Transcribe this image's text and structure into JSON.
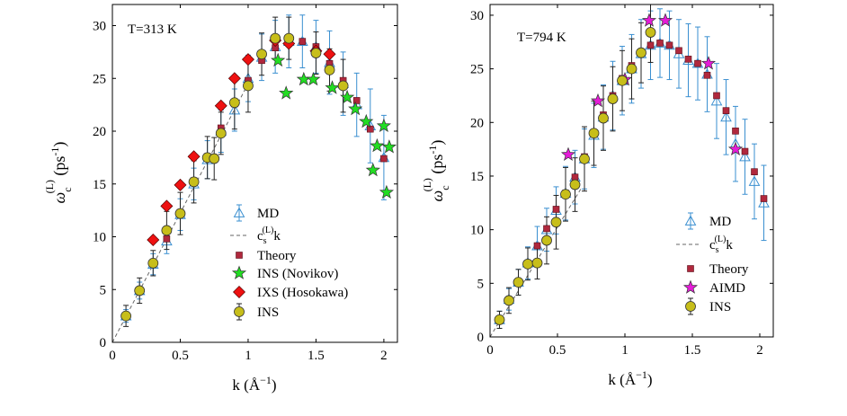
{
  "colors": {
    "md": "#3a8fd0",
    "theory": "#b0283d",
    "ins_novikov": "#22dd22",
    "ixs_hosokawa": "#ee1111",
    "ins": "#c7be1a",
    "aimd": "#e51cd8",
    "linear": "#666666"
  },
  "chart_data": [
    {
      "type": "scatter",
      "annotation": "T=313 K",
      "xlabel_main": "k (Å",
      "xlabel_exp": "−1",
      "xlabel_close": ")",
      "ylabel_main": "ω",
      "ylabel_sup": "(L)",
      "ylabel_sub": "c",
      "ylabel_unit": " (ps",
      "ylabel_unit_exp": "-1",
      "ylabel_unit_close": ")",
      "xlim": [
        0,
        2.1
      ],
      "ylim": [
        0,
        32
      ],
      "xticks": [
        0,
        0.5,
        1,
        1.5,
        2
      ],
      "xtick_labels": [
        "0",
        "0.5",
        "1",
        "1.5",
        "2"
      ],
      "yticks": [
        0,
        5,
        10,
        15,
        20,
        25,
        30
      ],
      "ytick_labels": [
        "0",
        "5",
        "10",
        "15",
        "20",
        "25",
        "30"
      ],
      "legend_position": "bottom-right",
      "linear_slope": 24.5,
      "linear_xmax": 1.0,
      "legend": {
        "md": "MD",
        "linear_pre": "c",
        "linear_sub": "s",
        "linear_sup": "(L)",
        "linear_post": "k",
        "theory": "Theory",
        "series4": "INS (Novikov)",
        "series5": "IXS (Hosokawa)",
        "ins": "INS"
      },
      "series": {
        "md": {
          "x": [
            0.1,
            0.2,
            0.3,
            0.4,
            0.5,
            0.6,
            0.7,
            0.8,
            0.9,
            1.0,
            1.1,
            1.2,
            1.3,
            1.4,
            1.5,
            1.6,
            1.7,
            1.8,
            1.9,
            2.0
          ],
          "y": [
            2.5,
            4.9,
            7.4,
            9.6,
            12.1,
            15.0,
            17.3,
            20.0,
            22.0,
            25.0,
            27.0,
            28.0,
            28.5,
            28.5,
            28.0,
            26.5,
            24.5,
            22.5,
            20.5,
            17.5
          ],
          "err": [
            0.6,
            0.8,
            1.0,
            1.2,
            1.5,
            1.5,
            1.8,
            2.0,
            2.0,
            2.2,
            2.2,
            2.5,
            2.5,
            2.5,
            2.5,
            3.0,
            3.0,
            3.0,
            3.5,
            4.0
          ]
        },
        "theory": {
          "x": [
            0.1,
            0.2,
            0.3,
            0.4,
            0.5,
            0.6,
            0.7,
            0.8,
            0.9,
            1.0,
            1.1,
            1.2,
            1.3,
            1.4,
            1.5,
            1.6,
            1.7,
            1.8,
            1.9,
            2.0
          ],
          "y": [
            2.5,
            4.9,
            7.4,
            9.8,
            12.3,
            15.3,
            17.6,
            20.3,
            22.6,
            24.8,
            26.7,
            27.9,
            28.5,
            28.5,
            28.0,
            26.4,
            24.8,
            22.9,
            20.2,
            17.4
          ]
        },
        "ins": {
          "x": [
            0.1,
            0.2,
            0.3,
            0.4,
            0.5,
            0.6,
            0.7,
            0.75,
            0.8,
            0.9,
            1.0,
            1.1,
            1.2,
            1.3,
            1.5,
            1.6,
            1.7
          ],
          "y": [
            2.5,
            4.9,
            7.5,
            10.6,
            12.2,
            15.2,
            17.5,
            17.4,
            19.8,
            22.7,
            24.3,
            27.3,
            28.8,
            28.8,
            27.4,
            25.8,
            24.3
          ],
          "err": [
            1.0,
            1.2,
            1.2,
            1.8,
            2.0,
            2.0,
            2.0,
            2.0,
            2.0,
            2.5,
            2.5,
            2.0,
            2.0,
            2.0,
            2.0,
            2.0,
            2.5
          ]
        },
        "series4": {
          "x": [
            1.22,
            1.28,
            1.41,
            1.48,
            1.62,
            1.73,
            1.79,
            1.87,
            1.92,
            1.95,
            2.0,
            2.02,
            2.04
          ],
          "y": [
            26.7,
            23.6,
            24.9,
            24.9,
            24.1,
            23.2,
            22.1,
            20.9,
            16.3,
            18.6,
            20.5,
            14.2,
            18.5
          ]
        },
        "series5": {
          "x": [
            0.3,
            0.4,
            0.5,
            0.6,
            0.8,
            0.9,
            1.0,
            1.2,
            1.3,
            1.5,
            1.6
          ],
          "y": [
            9.7,
            12.9,
            14.9,
            17.6,
            22.4,
            25.0,
            26.8,
            28.6,
            28.3,
            27.6,
            27.3
          ]
        }
      }
    },
    {
      "type": "scatter",
      "annotation": "T=794 K",
      "xlabel_main": "k (Å",
      "xlabel_exp": "−1",
      "xlabel_close": ")",
      "ylabel_main": "ω",
      "ylabel_sup": "(L)",
      "ylabel_sub": "c",
      "ylabel_unit": " (ps",
      "ylabel_unit_exp": "-1",
      "ylabel_unit_close": ")",
      "xlim": [
        0,
        2.1
      ],
      "ylim": [
        0,
        31
      ],
      "xticks": [
        0,
        0.5,
        1,
        1.5,
        2
      ],
      "xtick_labels": [
        "0",
        "0.5",
        "1",
        "1.5",
        "2"
      ],
      "yticks": [
        0,
        5,
        10,
        15,
        20,
        25,
        30
      ],
      "ytick_labels": [
        "0",
        "5",
        "10",
        "15",
        "20",
        "25",
        "30"
      ],
      "legend_position": "bottom-right",
      "linear_slope": 20.5,
      "linear_xmax": 0.68,
      "legend": {
        "md": "MD",
        "linear_pre": "c",
        "linear_sub": "s",
        "linear_sup": "(L)",
        "linear_post": "k",
        "theory": "Theory",
        "series4": "AIMD",
        "ins": "INS"
      },
      "series": {
        "md": {
          "x": [
            0.07,
            0.14,
            0.21,
            0.28,
            0.35,
            0.42,
            0.49,
            0.56,
            0.63,
            0.7,
            0.77,
            0.84,
            0.91,
            0.98,
            1.05,
            1.12,
            1.19,
            1.26,
            1.33,
            1.4,
            1.47,
            1.54,
            1.61,
            1.68,
            1.75,
            1.82,
            1.89,
            1.96,
            2.03
          ],
          "y": [
            1.6,
            3.5,
            5.1,
            6.9,
            8.5,
            10.0,
            11.8,
            13.4,
            14.9,
            16.6,
            18.8,
            20.5,
            22.5,
            23.9,
            25.0,
            26.4,
            27.2,
            27.4,
            27.2,
            26.4,
            25.8,
            25.5,
            24.5,
            22.0,
            20.5,
            18.0,
            16.8,
            14.5,
            12.5
          ],
          "err": [
            0.8,
            1.0,
            1.2,
            1.5,
            1.8,
            2.0,
            2.2,
            2.5,
            2.5,
            2.8,
            3.0,
            3.0,
            3.2,
            3.2,
            3.2,
            3.2,
            3.2,
            3.2,
            3.2,
            3.2,
            3.4,
            3.4,
            3.5,
            3.5,
            3.5,
            3.5,
            3.5,
            3.5,
            3.5
          ]
        },
        "theory": {
          "x": [
            0.07,
            0.14,
            0.21,
            0.28,
            0.35,
            0.42,
            0.49,
            0.56,
            0.63,
            0.7,
            0.77,
            0.84,
            0.91,
            0.98,
            1.05,
            1.12,
            1.19,
            1.26,
            1.33,
            1.4,
            1.47,
            1.54,
            1.61,
            1.68,
            1.75,
            1.82,
            1.89,
            1.96,
            2.03
          ],
          "y": [
            1.6,
            3.4,
            5.1,
            6.8,
            8.5,
            10.1,
            11.9,
            13.4,
            14.9,
            16.8,
            18.9,
            20.7,
            22.5,
            24.1,
            25.3,
            26.5,
            27.2,
            27.4,
            27.2,
            26.7,
            25.9,
            25.5,
            24.4,
            22.5,
            21.1,
            19.2,
            17.3,
            15.4,
            12.9
          ]
        },
        "ins": {
          "x": [
            0.07,
            0.14,
            0.21,
            0.28,
            0.35,
            0.42,
            0.49,
            0.56,
            0.63,
            0.7,
            0.77,
            0.84,
            0.91,
            0.98,
            1.05,
            1.12,
            1.19
          ],
          "y": [
            1.6,
            3.4,
            5.1,
            6.8,
            6.9,
            9.0,
            10.7,
            13.3,
            14.2,
            16.6,
            19.0,
            20.4,
            22.2,
            23.9,
            25.0,
            26.5,
            28.4
          ],
          "err": [
            0.8,
            1.2,
            1.2,
            1.5,
            1.5,
            2.2,
            2.5,
            2.5,
            2.5,
            3.0,
            3.0,
            3.0,
            3.0,
            2.8,
            2.8,
            2.8,
            2.8
          ]
        },
        "series4": {
          "x": [
            0.58,
            0.8,
            1.0,
            1.18,
            1.3,
            1.62,
            1.82
          ],
          "y": [
            17.0,
            22.0,
            24.0,
            29.5,
            29.5,
            25.5,
            17.5
          ]
        }
      }
    }
  ]
}
